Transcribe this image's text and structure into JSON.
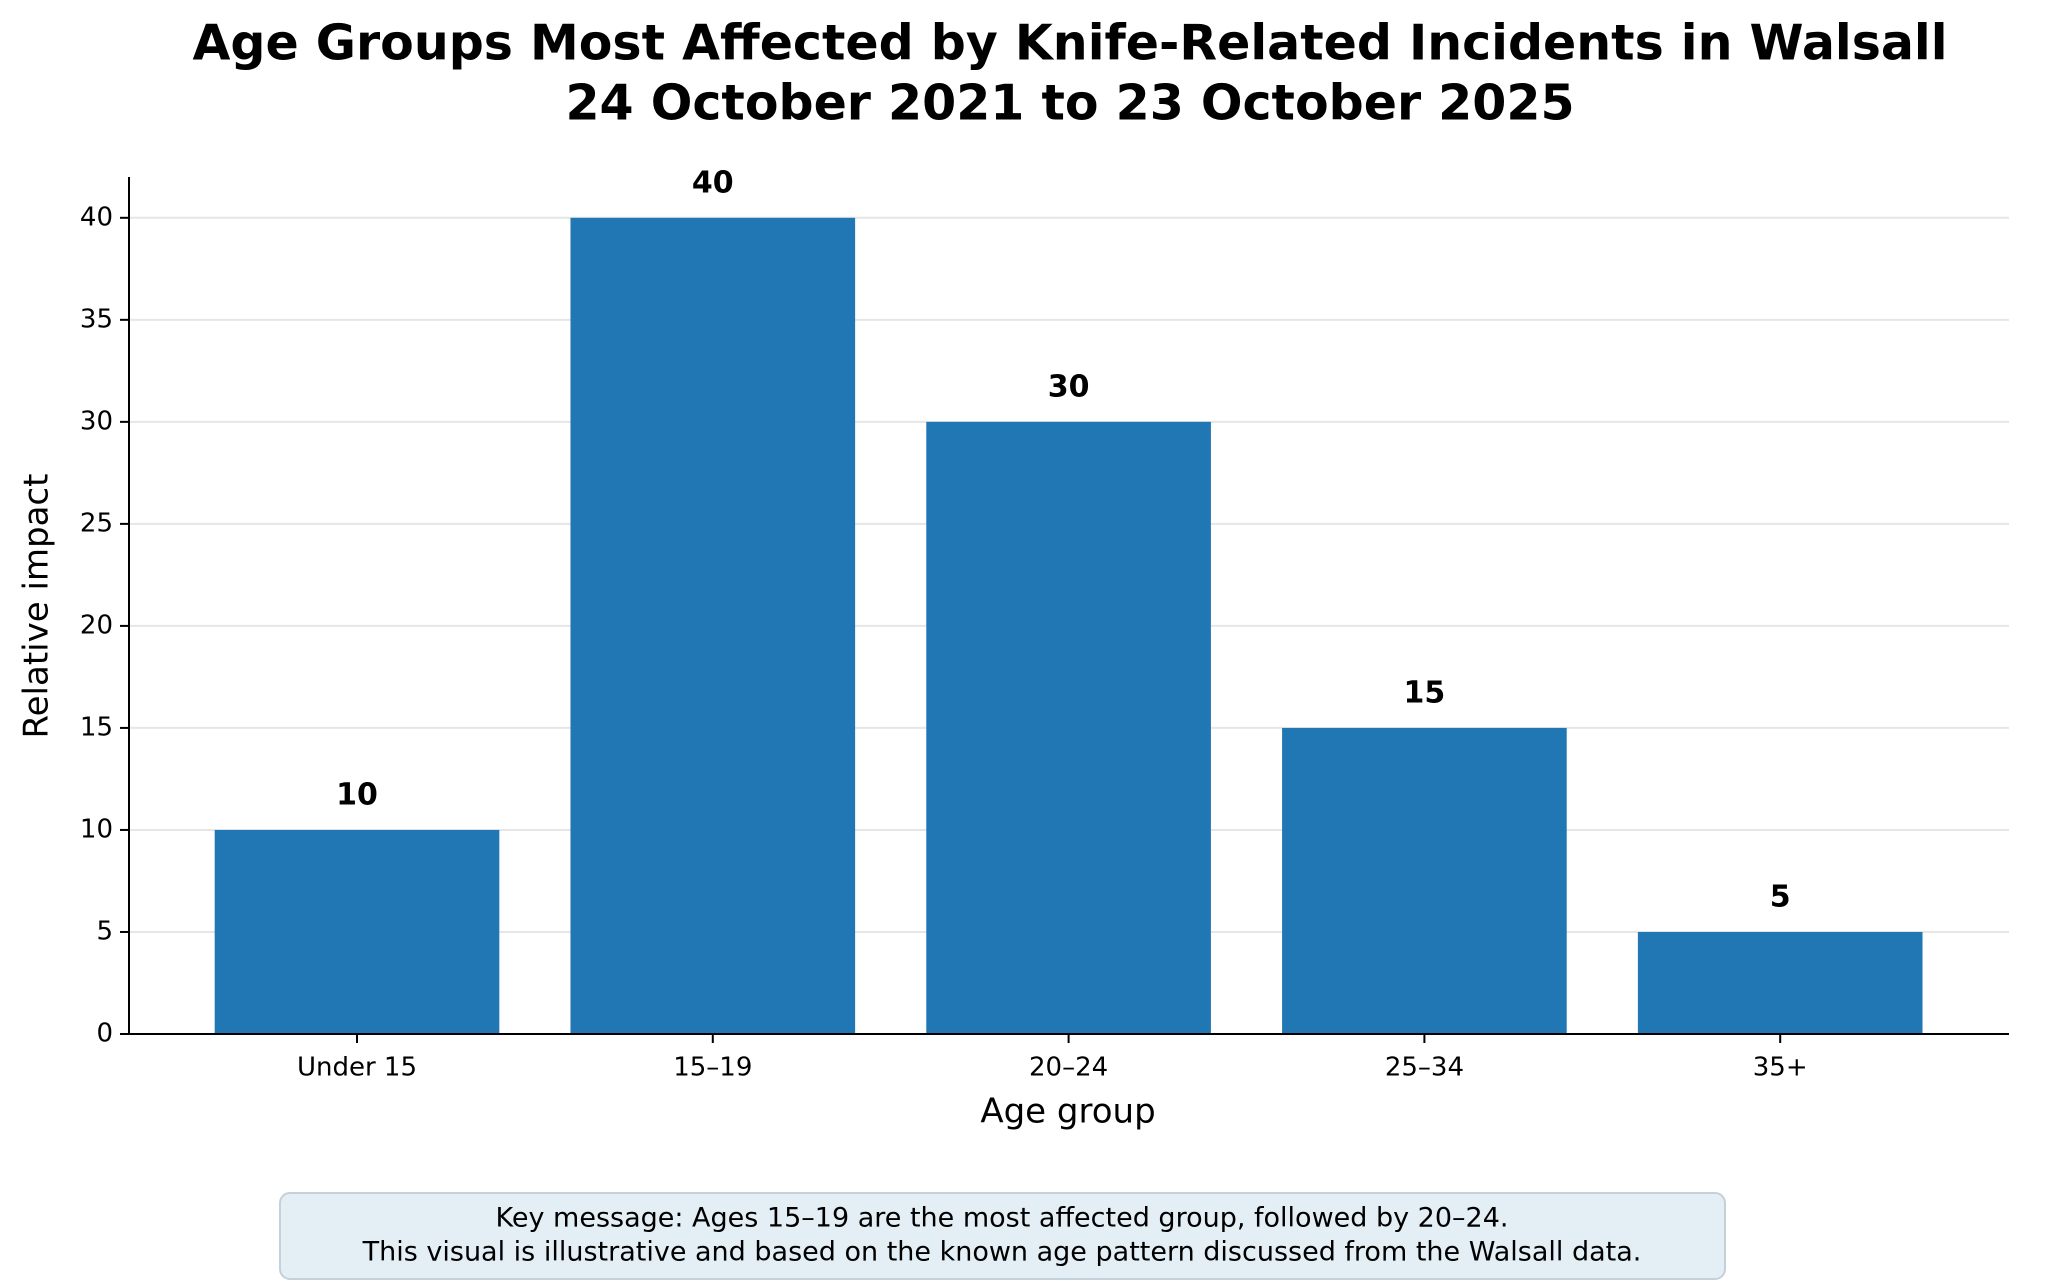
{
  "chart_data": {
    "type": "bar",
    "title": [
      "Age Groups Most Affected by Knife-Related Incidents in Walsall",
      "24 October 2021 to 23 October 2025"
    ],
    "categories": [
      "Under 15",
      "15–19",
      "20–24",
      "25–34",
      "35+"
    ],
    "values": [
      10,
      40,
      30,
      15,
      5
    ],
    "color": "#2177b4",
    "xlabel": "Age group",
    "ylabel": "Relative impact",
    "ylim": [
      0,
      42
    ],
    "yticks": [
      0,
      5,
      10,
      15,
      20,
      25,
      30,
      35,
      40
    ],
    "grid": true,
    "note": [
      "Key message: Ages 15–19 are the most affected group, followed by 20–24.",
      "This visual is illustrative and based on the known age pattern discussed from the Walsall data."
    ]
  }
}
